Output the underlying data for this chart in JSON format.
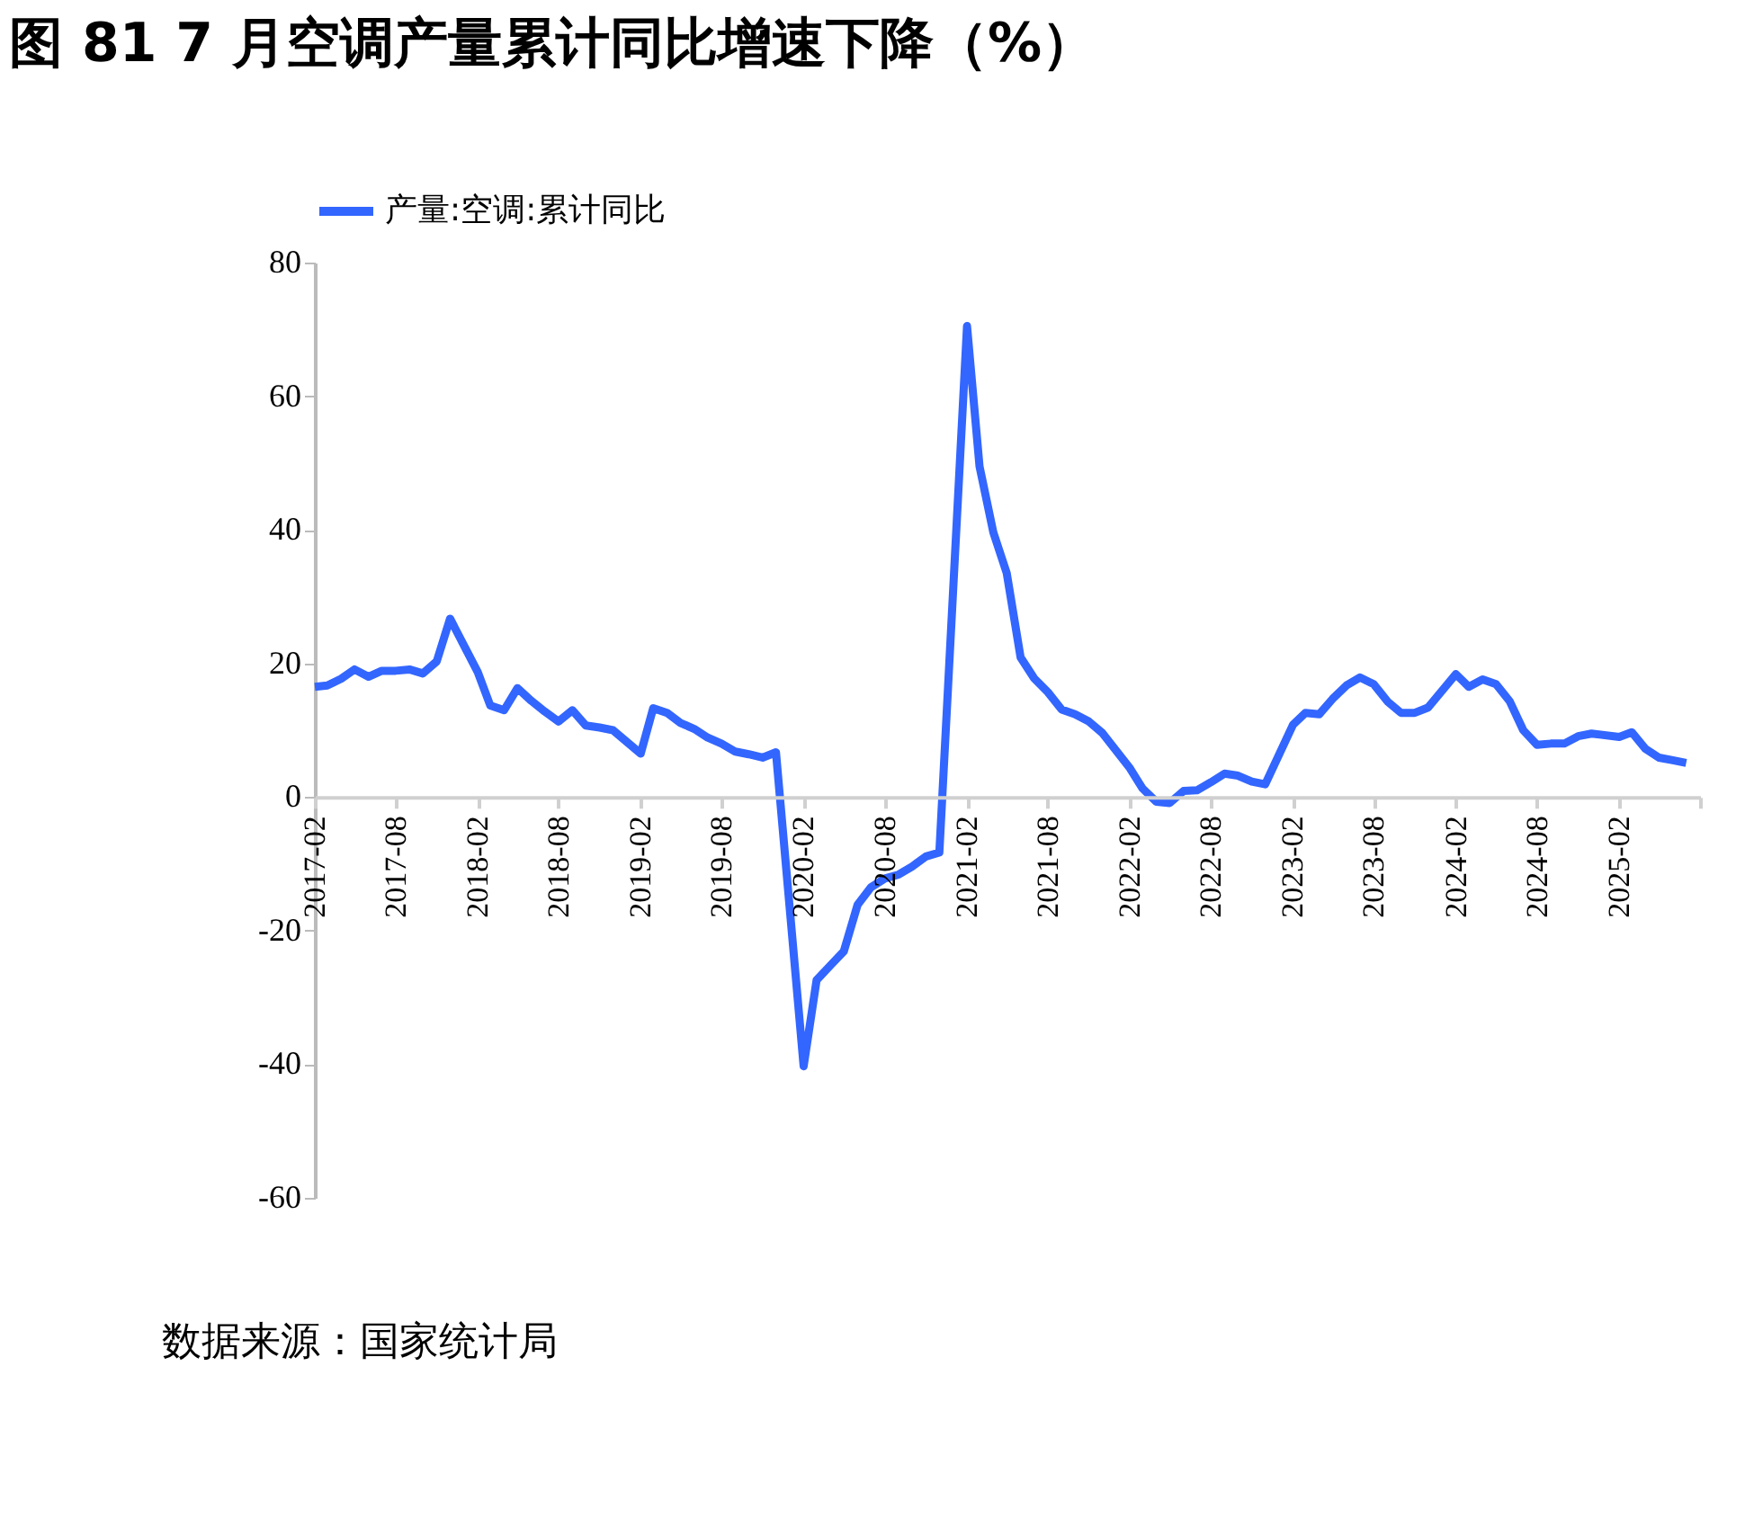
{
  "chart_data": {
    "type": "line",
    "title": "图 81 7 月空调产量累计同比增速下降（%）",
    "annotations": [
      "数据来源：国家统计局"
    ],
    "x": [
      "2017-02",
      "2017-03",
      "2017-04",
      "2017-05",
      "2017-06",
      "2017-07",
      "2017-08",
      "2017-09",
      "2017-10",
      "2017-11",
      "2017-12",
      "2018-02",
      "2018-03",
      "2018-04",
      "2018-05",
      "2018-06",
      "2018-07",
      "2018-08",
      "2018-09",
      "2018-10",
      "2018-11",
      "2018-12",
      "2019-02",
      "2019-03",
      "2019-04",
      "2019-05",
      "2019-06",
      "2019-07",
      "2019-08",
      "2019-09",
      "2019-10",
      "2019-11",
      "2019-12",
      "2020-02",
      "2020-03",
      "2020-04",
      "2020-05",
      "2020-06",
      "2020-07",
      "2020-08",
      "2020-09",
      "2020-10",
      "2020-11",
      "2020-12",
      "2021-02",
      "2021-03",
      "2021-04",
      "2021-05",
      "2021-06",
      "2021-07",
      "2021-08",
      "2021-09",
      "2021-10",
      "2021-11",
      "2021-12",
      "2022-02",
      "2022-03",
      "2022-04",
      "2022-05",
      "2022-06",
      "2022-07",
      "2022-08",
      "2022-09",
      "2022-10",
      "2022-11",
      "2022-12",
      "2023-02",
      "2023-03",
      "2023-04",
      "2023-05",
      "2023-06",
      "2023-07",
      "2023-08",
      "2023-09",
      "2023-10",
      "2023-11",
      "2023-12",
      "2024-02",
      "2024-03",
      "2024-04",
      "2024-05",
      "2024-06",
      "2024-07",
      "2024-08",
      "2024-09",
      "2024-10",
      "2024-11",
      "2024-12",
      "2025-02",
      "2025-03",
      "2025-04",
      "2025-05",
      "2025-06",
      "2025-07"
    ],
    "series": [
      {
        "name": "产量:空调:累计同比",
        "color": "#3366ff",
        "values": [
          16.5,
          16.7,
          17.7,
          19.1,
          18.0,
          18.9,
          18.9,
          19.1,
          18.5,
          20.3,
          26.7,
          18.7,
          13.7,
          13.0,
          16.3,
          14.4,
          12.8,
          11.3,
          13.0,
          10.7,
          10.4,
          10.0,
          6.5,
          13.3,
          12.6,
          11.1,
          10.2,
          8.9,
          8.0,
          6.8,
          6.4,
          5.9,
          6.7,
          -40.3,
          -27.4,
          -25.2,
          -23.1,
          -16.1,
          -13.5,
          -12.2,
          -11.6,
          -10.4,
          -8.9,
          -8.3,
          70.5,
          49.5,
          39.6,
          33.5,
          20.9,
          17.8,
          15.7,
          13.1,
          12.4,
          11.3,
          9.6,
          4.3,
          1.3,
          -0.7,
          -0.9,
          0.9,
          1.0,
          2.2,
          3.5,
          3.2,
          2.3,
          1.9,
          10.8,
          12.6,
          12.4,
          14.7,
          16.7,
          17.9,
          16.9,
          14.3,
          12.6,
          12.6,
          13.4,
          18.4,
          16.5,
          17.6,
          16.9,
          14.3,
          10.0,
          7.8,
          8.0,
          8.0,
          9.1,
          9.5,
          9.0,
          9.7,
          7.2,
          5.9,
          5.5,
          5.1
        ]
      }
    ],
    "xlim": [
      "2017-02",
      "2025-08"
    ],
    "xticks": [
      "2017-02",
      "2017-08",
      "2018-02",
      "2018-08",
      "2019-02",
      "2019-08",
      "2020-02",
      "2020-08",
      "2021-02",
      "2021-08",
      "2022-02",
      "2022-08",
      "2023-02",
      "2023-08",
      "2024-02",
      "2024-08",
      "2025-02",
      {
        "value": "2025-08",
        "label": null
      }
    ],
    "ylim": [
      -60,
      80
    ],
    "yticks": [
      -60,
      -40,
      -20,
      0,
      20,
      40,
      60,
      80
    ],
    "grid": false,
    "legend": "top",
    "marker": "none",
    "line_style": "solid"
  }
}
